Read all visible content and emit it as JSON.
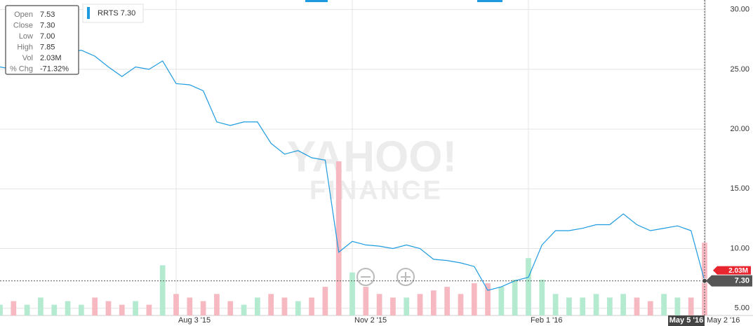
{
  "chart_data": {
    "type": "line",
    "legend": "top-left",
    "grid": true,
    "categories": [
      null,
      null,
      null,
      null,
      null,
      null,
      null,
      null,
      null,
      null,
      null,
      null,
      null,
      "Aug 3 '15",
      null,
      null,
      null,
      null,
      null,
      null,
      null,
      null,
      null,
      null,
      null,
      null,
      "Nov 2 '15",
      null,
      null,
      null,
      null,
      null,
      null,
      null,
      null,
      null,
      null,
      null,
      null,
      "Feb 1 '16",
      null,
      null,
      null,
      null,
      null,
      null,
      null,
      null,
      null,
      null,
      null,
      null,
      "May 2 '16"
    ],
    "series": [
      {
        "name": "RRTS 7.30",
        "color": "#1e9be0",
        "values": [
          25.2,
          25.0,
          25.0,
          25.2,
          26.1,
          26.4,
          26.6,
          26.1,
          25.2,
          24.4,
          25.2,
          25.0,
          25.7,
          23.8,
          23.7,
          23.2,
          20.6,
          20.3,
          20.6,
          20.6,
          18.8,
          17.9,
          18.2,
          17.6,
          17.4,
          9.7,
          10.6,
          10.3,
          10.2,
          10.0,
          10.3,
          10.0,
          9.1,
          9.0,
          8.8,
          8.5,
          6.5,
          6.8,
          7.3,
          7.6,
          10.3,
          11.5,
          11.5,
          11.7,
          12.0,
          12.0,
          12.9,
          12.0,
          11.5,
          11.7,
          11.9,
          11.5,
          7.3
        ]
      },
      {
        "type": "bar",
        "axis": "y2",
        "up_color": "#b3ead0",
        "down_color": "#f6b9c1",
        "values": [
          0.3,
          0.4,
          0.3,
          0.5,
          0.3,
          0.4,
          0.3,
          0.5,
          0.4,
          0.3,
          0.4,
          0.3,
          1.4,
          0.6,
          0.5,
          0.4,
          0.6,
          0.4,
          0.3,
          0.5,
          0.6,
          0.5,
          0.4,
          0.5,
          0.8,
          4.3,
          1.2,
          0.8,
          0.6,
          0.5,
          0.5,
          0.6,
          0.7,
          0.8,
          0.6,
          0.9,
          0.9,
          0.8,
          1.0,
          1.6,
          1.0,
          0.6,
          0.5,
          0.5,
          0.6,
          0.5,
          0.6,
          0.5,
          0.4,
          0.6,
          0.5,
          0.5,
          2.03
        ]
      }
    ],
    "ylim": [
      4.4,
      30.8
    ],
    "yticks": [
      {
        "value": 5,
        "label": "5.00"
      },
      {
        "value": 10,
        "label": "10.00"
      },
      {
        "value": 15,
        "label": "15.00"
      },
      {
        "value": 20,
        "label": "20.00"
      },
      {
        "value": 25,
        "label": "25.00"
      },
      {
        "value": 30,
        "label": "30.00"
      }
    ],
    "y2lim": [
      0,
      8.8
    ],
    "tooltip": [
      {
        "label": "Open",
        "value": "7.53"
      },
      {
        "label": "Close",
        "value": "7.30"
      },
      {
        "label": "Low",
        "value": "7.00"
      },
      {
        "label": "High",
        "value": "7.85"
      },
      {
        "label": "Vol",
        "value": "2.03M"
      },
      {
        "label": "% Chg",
        "value": "-71.32%"
      }
    ],
    "crosshair_label": "May 5 '16",
    "watermark": [
      "YAHOO!",
      "FINANCE"
    ]
  }
}
